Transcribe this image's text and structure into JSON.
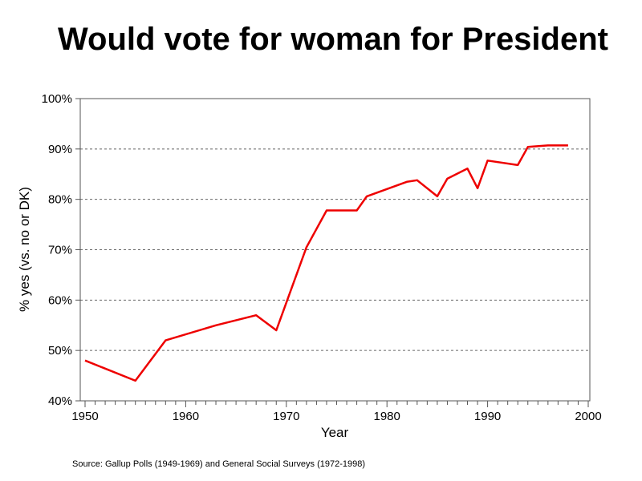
{
  "chart_data": {
    "type": "line",
    "title": "Would vote for woman for President",
    "xlabel": "Year",
    "ylabel": "% yes (vs. no or DK)",
    "source": "Source:  Gallup Polls (1949-1969) and General Social Surveys (1972-1998)",
    "xlim": [
      1950,
      2000
    ],
    "ylim": [
      40,
      100
    ],
    "x_ticks": [
      "1950",
      "1960",
      "1970",
      "1980",
      "1990",
      "2000"
    ],
    "y_ticks": [
      "40%",
      "50%",
      "60%",
      "70%",
      "80%",
      "90%",
      "100%"
    ],
    "grid": "horizontal dashed",
    "line_color": "#ee0000",
    "series": [
      {
        "x": [
          1950,
          1955,
          1958,
          1963,
          1967,
          1969,
          1972,
          1974,
          1977,
          1978,
          1982,
          1983,
          1985,
          1986,
          1988,
          1989,
          1990,
          1993,
          1994,
          1996,
          1998
        ],
        "y": [
          48,
          44,
          52,
          55,
          57,
          54,
          70.5,
          77.8,
          77.8,
          80.6,
          83.5,
          83.8,
          80.6,
          84.1,
          86.1,
          82.2,
          87.7,
          86.8,
          90.4,
          90.7,
          90.7
        ]
      }
    ]
  }
}
